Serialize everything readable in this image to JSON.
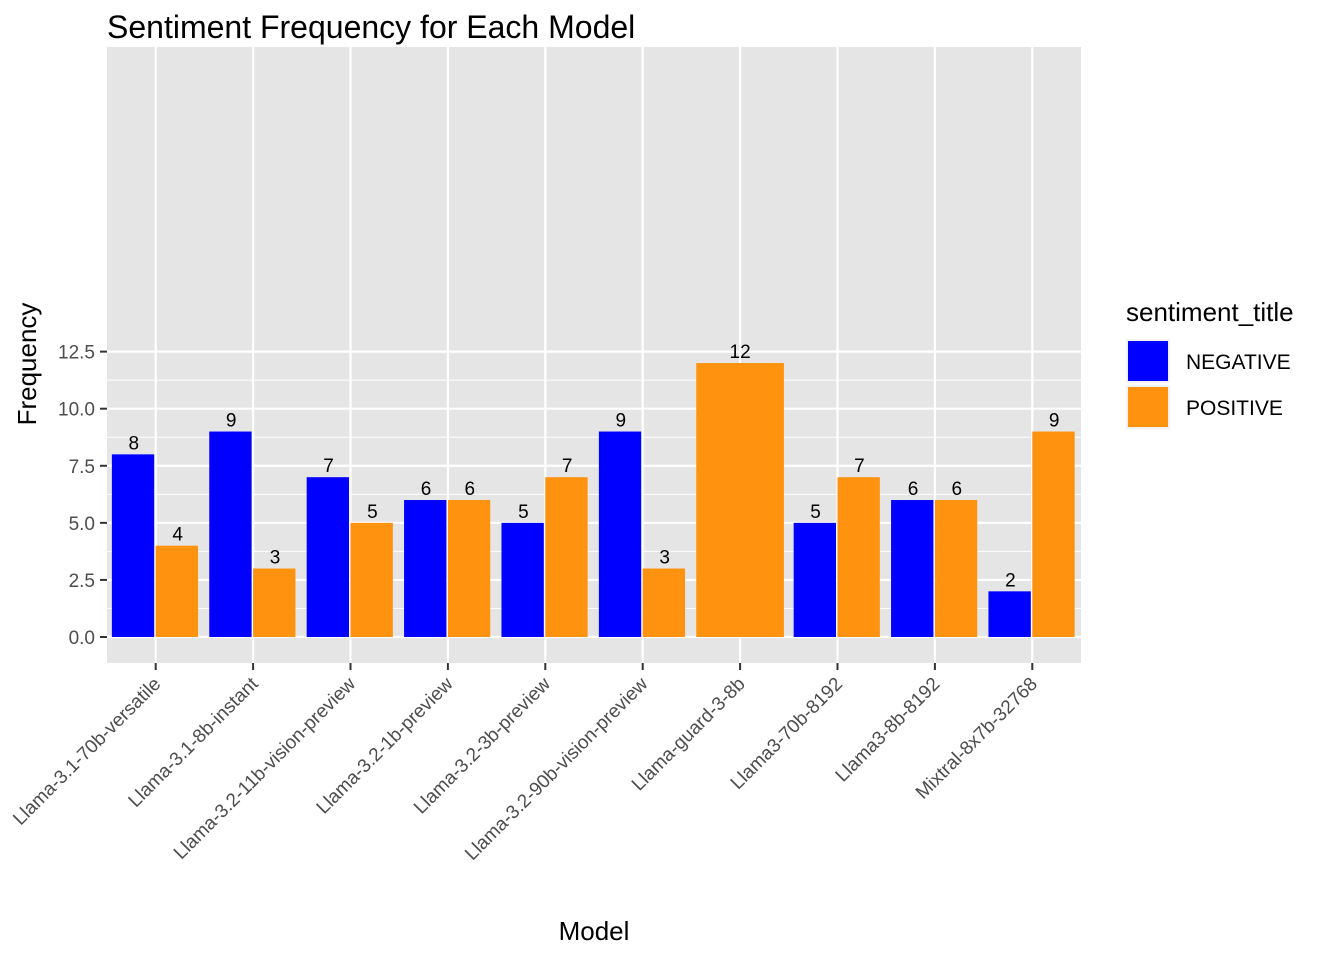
{
  "chart_data": {
    "type": "bar",
    "title": "Sentiment Frequency for Each Model",
    "xlabel": "Model",
    "ylabel": "Frequency",
    "ylim": [
      -0.6,
      12.5
    ],
    "yticks": [
      "0.0",
      "2.5",
      "5.0",
      "7.5",
      "10.0",
      "12.5"
    ],
    "ytick_values": [
      0,
      2.5,
      5,
      7.5,
      10,
      12.5
    ],
    "grid": true,
    "legend": {
      "title": "sentiment_title",
      "position": "right"
    },
    "categories": [
      "Llama-3.1-70b-versatile",
      "Llama-3.1-8b-instant",
      "Llama-3.2-11b-vision-preview",
      "Llama-3.2-1b-preview",
      "Llama-3.2-3b-preview",
      "Llama-3.2-90b-vision-preview",
      "Llama-guard-3-8b",
      "Llama3-70b-8192",
      "Llama3-8b-8192",
      "Mixtral-8x7b-32768"
    ],
    "series": [
      {
        "name": "NEGATIVE",
        "color": "#0000ff",
        "values": [
          8,
          9,
          7,
          6,
          5,
          9,
          null,
          5,
          6,
          2
        ]
      },
      {
        "name": "POSITIVE",
        "color": "#ff920f",
        "values": [
          4,
          3,
          5,
          6,
          7,
          3,
          12,
          7,
          6,
          9
        ]
      }
    ],
    "panel_background": "#e5e5e5",
    "grid_color": "#ffffff"
  }
}
